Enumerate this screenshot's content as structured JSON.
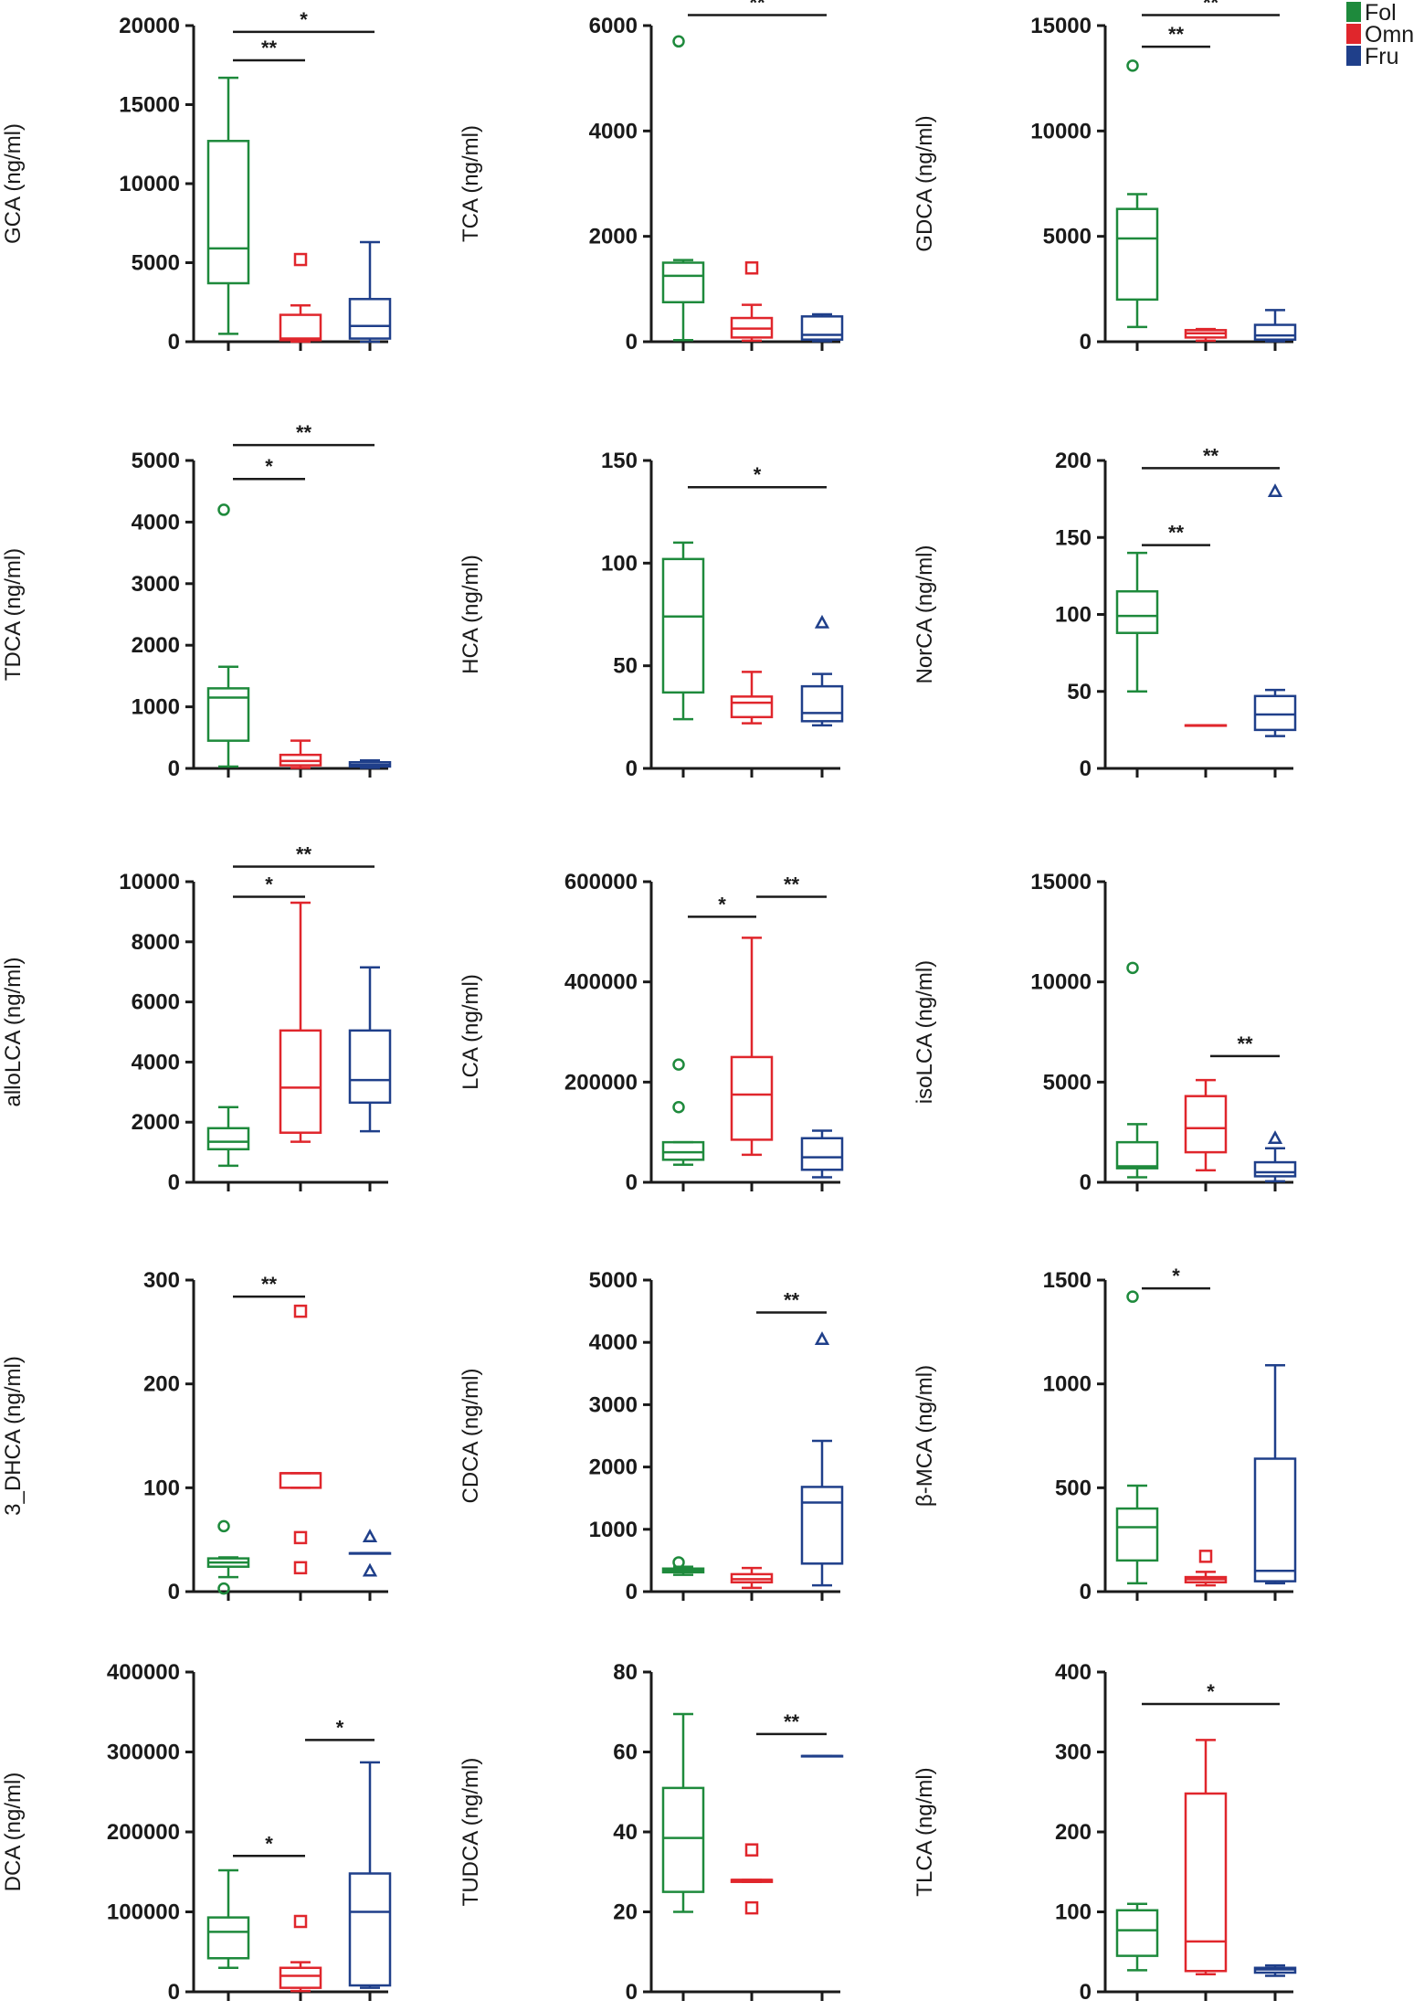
{
  "legend": [
    {
      "name": "Fol",
      "color": "#1e8a3c"
    },
    {
      "name": "Omn",
      "color": "#e0262c"
    },
    {
      "name": "Fru",
      "color": "#1f3f8a"
    }
  ],
  "chart_data": [
    {
      "type": "box",
      "ylabel": "GCA (ng/ml)",
      "ylim": [
        0,
        20000
      ],
      "yticks": [
        0,
        5000,
        10000,
        15000,
        20000
      ],
      "boxes": [
        {
          "group": "Fol",
          "min": 500,
          "q1": 3700,
          "median": 5900,
          "q3": 12700,
          "max": 16700,
          "outliers": []
        },
        {
          "group": "Omn",
          "min": 0,
          "q1": 100,
          "median": 200,
          "q3": 1700,
          "max": 2300,
          "outliers": [
            5200
          ]
        },
        {
          "group": "Fru",
          "min": 0,
          "q1": 200,
          "median": 1000,
          "q3": 2700,
          "max": 6300,
          "outliers": []
        }
      ],
      "significance": [
        {
          "from": 0,
          "to": 1,
          "label": "**",
          "y": 17800
        },
        {
          "from": 0,
          "to": 2,
          "label": "*",
          "y": 19600
        }
      ]
    },
    {
      "type": "box",
      "ylabel": "TCA (ng/ml)",
      "ylim": [
        0,
        6000
      ],
      "yticks": [
        0,
        2000,
        4000,
        6000
      ],
      "boxes": [
        {
          "group": "Fol",
          "min": 30,
          "q1": 750,
          "median": 1250,
          "q3": 1500,
          "max": 1550,
          "outliers": [
            5700
          ]
        },
        {
          "group": "Omn",
          "min": 20,
          "q1": 80,
          "median": 250,
          "q3": 450,
          "max": 700,
          "outliers": [
            1400
          ]
        },
        {
          "group": "Fru",
          "min": 10,
          "q1": 40,
          "median": 130,
          "q3": 480,
          "max": 520,
          "outliers": []
        }
      ],
      "significance": [
        {
          "from": 0,
          "to": 2,
          "label": "**",
          "y": 6200
        }
      ]
    },
    {
      "type": "box",
      "ylabel": "GDCA (ng/ml)",
      "ylim": [
        0,
        15000
      ],
      "yticks": [
        0,
        5000,
        10000,
        15000
      ],
      "boxes": [
        {
          "group": "Fol",
          "min": 700,
          "q1": 2000,
          "median": 4900,
          "q3": 6300,
          "max": 7000,
          "outliers": [
            13100
          ]
        },
        {
          "group": "Omn",
          "min": 50,
          "q1": 200,
          "median": 400,
          "q3": 550,
          "max": 600,
          "outliers": []
        },
        {
          "group": "Fru",
          "min": 20,
          "q1": 100,
          "median": 300,
          "q3": 800,
          "max": 1500,
          "outliers": []
        }
      ],
      "significance": [
        {
          "from": 0,
          "to": 1,
          "label": "**",
          "y": 14000
        },
        {
          "from": 0,
          "to": 2,
          "label": "**",
          "y": 15500
        }
      ]
    },
    {
      "type": "box",
      "ylabel": "TDCA (ng/ml)",
      "ylim": [
        0,
        5000
      ],
      "yticks": [
        0,
        1000,
        2000,
        3000,
        4000,
        5000
      ],
      "boxes": [
        {
          "group": "Fol",
          "min": 30,
          "q1": 450,
          "median": 1150,
          "q3": 1300,
          "max": 1650,
          "outliers": [
            4200
          ]
        },
        {
          "group": "Omn",
          "min": 10,
          "q1": 50,
          "median": 120,
          "q3": 220,
          "max": 450,
          "outliers": []
        },
        {
          "group": "Fru",
          "min": 10,
          "q1": 30,
          "median": 60,
          "q3": 100,
          "max": 130,
          "outliers": []
        }
      ],
      "significance": [
        {
          "from": 0,
          "to": 1,
          "label": "*",
          "y": 4700
        },
        {
          "from": 0,
          "to": 2,
          "label": "**",
          "y": 5250
        }
      ]
    },
    {
      "type": "box",
      "ylabel": "HCA (ng/ml)",
      "ylim": [
        0,
        150
      ],
      "yticks": [
        0,
        50,
        100,
        150
      ],
      "boxes": [
        {
          "group": "Fol",
          "min": 24,
          "q1": 37,
          "median": 74,
          "q3": 102,
          "max": 110,
          "outliers": []
        },
        {
          "group": "Omn",
          "min": 22,
          "q1": 25,
          "median": 32,
          "q3": 35,
          "max": 47,
          "outliers": []
        },
        {
          "group": "Fru",
          "min": 21,
          "q1": 23,
          "median": 27,
          "q3": 40,
          "max": 46,
          "outliers": [
            71
          ]
        }
      ],
      "significance": [
        {
          "from": 0,
          "to": 2,
          "label": "*",
          "y": 137
        }
      ]
    },
    {
      "type": "box",
      "ylabel": "NorCA (ng/ml)",
      "ylim": [
        0,
        200
      ],
      "yticks": [
        0,
        50,
        100,
        150,
        200
      ],
      "boxes": [
        {
          "group": "Fol",
          "min": 50,
          "q1": 88,
          "median": 99,
          "q3": 115,
          "max": 140,
          "outliers": []
        },
        {
          "group": "Omn",
          "min": 28,
          "q1": 28,
          "median": 28,
          "q3": 28,
          "max": 28,
          "outliers": []
        },
        {
          "group": "Fru",
          "min": 21,
          "q1": 25,
          "median": 35,
          "q3": 47,
          "max": 51,
          "outliers": [
            180
          ]
        }
      ],
      "significance": [
        {
          "from": 0,
          "to": 1,
          "label": "**",
          "y": 145
        },
        {
          "from": 0,
          "to": 2,
          "label": "**",
          "y": 195
        }
      ]
    },
    {
      "type": "box",
      "ylabel": "alloLCA (ng/ml)",
      "ylim": [
        0,
        10000
      ],
      "yticks": [
        0,
        2000,
        4000,
        6000,
        8000,
        10000
      ],
      "boxes": [
        {
          "group": "Fol",
          "min": 550,
          "q1": 1100,
          "median": 1350,
          "q3": 1800,
          "max": 2500,
          "outliers": []
        },
        {
          "group": "Omn",
          "min": 1350,
          "q1": 1650,
          "median": 3150,
          "q3": 5050,
          "max": 9300,
          "outliers": []
        },
        {
          "group": "Fru",
          "min": 1700,
          "q1": 2650,
          "median": 3400,
          "q3": 5050,
          "max": 7150,
          "outliers": []
        }
      ],
      "significance": [
        {
          "from": 0,
          "to": 1,
          "label": "*",
          "y": 9500
        },
        {
          "from": 0,
          "to": 2,
          "label": "**",
          "y": 10500
        }
      ]
    },
    {
      "type": "box",
      "ylabel": "LCA (ng/ml)",
      "ylim": [
        0,
        600000
      ],
      "yticks": [
        0,
        200000,
        400000,
        600000
      ],
      "boxes": [
        {
          "group": "Fol",
          "min": 35000,
          "q1": 45000,
          "median": 60000,
          "q3": 80000,
          "max": 80000,
          "outliers": [
            150000,
            235000
          ]
        },
        {
          "group": "Omn",
          "min": 55000,
          "q1": 85000,
          "median": 175000,
          "q3": 250000,
          "max": 488000,
          "outliers": []
        },
        {
          "group": "Fru",
          "min": 10000,
          "q1": 25000,
          "median": 50000,
          "q3": 88000,
          "max": 103000,
          "outliers": []
        }
      ],
      "significance": [
        {
          "from": 0,
          "to": 1,
          "label": "*",
          "y": 530000
        },
        {
          "from": 1,
          "to": 2,
          "label": "**",
          "y": 570000
        }
      ]
    },
    {
      "type": "box",
      "ylabel": "isoLCA (ng/ml)",
      "ylim": [
        0,
        15000
      ],
      "yticks": [
        0,
        5000,
        10000,
        15000
      ],
      "boxes": [
        {
          "group": "Fol",
          "min": 250,
          "q1": 700,
          "median": 800,
          "q3": 2000,
          "max": 2900,
          "outliers": [
            10700
          ]
        },
        {
          "group": "Omn",
          "min": 600,
          "q1": 1500,
          "median": 2700,
          "q3": 4300,
          "max": 5100,
          "outliers": []
        },
        {
          "group": "Fru",
          "min": 50,
          "q1": 300,
          "median": 500,
          "q3": 1000,
          "max": 1700,
          "outliers": [
            2200
          ]
        }
      ],
      "significance": [
        {
          "from": 1,
          "to": 2,
          "label": "**",
          "y": 6300
        }
      ]
    },
    {
      "type": "box",
      "ylabel": "3_DHCA (ng/ml)",
      "ylim": [
        0,
        300
      ],
      "yticks": [
        0,
        100,
        200,
        300
      ],
      "boxes": [
        {
          "group": "Fol",
          "min": 14,
          "q1": 24,
          "median": 28,
          "q3": 32,
          "max": 33,
          "outliers": [
            63,
            3
          ]
        },
        {
          "group": "Omn",
          "min": 100,
          "q1": 100,
          "median": 114,
          "q3": 114,
          "max": 114,
          "outliers": [
            270,
            52,
            23
          ]
        },
        {
          "group": "Fru",
          "min": 37,
          "q1": 37,
          "median": 37,
          "q3": 37,
          "max": 37,
          "outliers": [
            53,
            20
          ]
        }
      ],
      "significance": [
        {
          "from": 0,
          "to": 1,
          "label": "**",
          "y": 284
        }
      ]
    },
    {
      "type": "box",
      "ylabel": "CDCA (ng/ml)",
      "ylim": [
        0,
        5000
      ],
      "yticks": [
        0,
        1000,
        2000,
        3000,
        4000,
        5000
      ],
      "boxes": [
        {
          "group": "Fol",
          "min": 270,
          "q1": 310,
          "median": 340,
          "q3": 370,
          "max": 400,
          "outliers": [
            470
          ]
        },
        {
          "group": "Omn",
          "min": 60,
          "q1": 150,
          "median": 200,
          "q3": 280,
          "max": 380,
          "outliers": []
        },
        {
          "group": "Fru",
          "min": 100,
          "q1": 450,
          "median": 1430,
          "q3": 1680,
          "max": 2420,
          "outliers": [
            4050
          ]
        }
      ],
      "significance": [
        {
          "from": 1,
          "to": 2,
          "label": "**",
          "y": 4480
        }
      ]
    },
    {
      "type": "box",
      "ylabel": "β-MCA (ng/ml)",
      "ylim": [
        0,
        1500
      ],
      "yticks": [
        0,
        500,
        1000,
        1500
      ],
      "boxes": [
        {
          "group": "Fol",
          "min": 40,
          "q1": 150,
          "median": 310,
          "q3": 400,
          "max": 510,
          "outliers": [
            1420
          ]
        },
        {
          "group": "Omn",
          "min": 30,
          "q1": 45,
          "median": 60,
          "q3": 70,
          "max": 95,
          "outliers": [
            170
          ]
        },
        {
          "group": "Fru",
          "min": 40,
          "q1": 50,
          "median": 100,
          "q3": 640,
          "max": 1090,
          "outliers": []
        }
      ],
      "significance": [
        {
          "from": 0,
          "to": 1,
          "label": "*",
          "y": 1460
        }
      ]
    },
    {
      "type": "box",
      "ylabel": "DCA (ng/ml)",
      "ylim": [
        0,
        400000
      ],
      "yticks": [
        0,
        100000,
        200000,
        300000,
        400000
      ],
      "boxes": [
        {
          "group": "Fol",
          "min": 30000,
          "q1": 42000,
          "median": 75000,
          "q3": 93000,
          "max": 152000,
          "outliers": []
        },
        {
          "group": "Omn",
          "min": 1000,
          "q1": 5000,
          "median": 20000,
          "q3": 30000,
          "max": 37000,
          "outliers": [
            88000
          ]
        },
        {
          "group": "Fru",
          "min": 5000,
          "q1": 8000,
          "median": 100000,
          "q3": 148000,
          "max": 287000,
          "outliers": []
        }
      ],
      "significance": [
        {
          "from": 0,
          "to": 1,
          "label": "*",
          "y": 170000
        },
        {
          "from": 1,
          "to": 2,
          "label": "*",
          "y": 315000
        }
      ]
    },
    {
      "type": "box",
      "ylabel": "TUDCA (ng/ml)",
      "ylim": [
        0,
        80
      ],
      "yticks": [
        0,
        20,
        40,
        60,
        80
      ],
      "boxes": [
        {
          "group": "Fol",
          "min": 20,
          "q1": 25,
          "median": 38.5,
          "q3": 51,
          "max": 69.5,
          "outliers": []
        },
        {
          "group": "Omn",
          "min": 27.5,
          "q1": 27.5,
          "median": 28,
          "q3": 28,
          "max": 28,
          "outliers": [
            35.5,
            21
          ]
        },
        {
          "group": "Fru",
          "min": 59,
          "q1": 59,
          "median": 59,
          "q3": 59,
          "max": 59,
          "outliers": []
        }
      ],
      "significance": [
        {
          "from": 1,
          "to": 2,
          "label": "**",
          "y": 64.5
        }
      ]
    },
    {
      "type": "box",
      "ylabel": "TLCA (ng/ml)",
      "ylim": [
        0,
        400
      ],
      "yticks": [
        0,
        100,
        200,
        300,
        400
      ],
      "boxes": [
        {
          "group": "Fol",
          "min": 27,
          "q1": 45,
          "median": 77,
          "q3": 102,
          "max": 110,
          "outliers": []
        },
        {
          "group": "Omn",
          "min": 22,
          "q1": 26,
          "median": 63,
          "q3": 248,
          "max": 315,
          "outliers": []
        },
        {
          "group": "Fru",
          "min": 20,
          "q1": 24,
          "median": 28,
          "q3": 30,
          "max": 33,
          "outliers": []
        }
      ],
      "significance": [
        {
          "from": 0,
          "to": 2,
          "label": "*",
          "y": 360
        }
      ]
    }
  ]
}
